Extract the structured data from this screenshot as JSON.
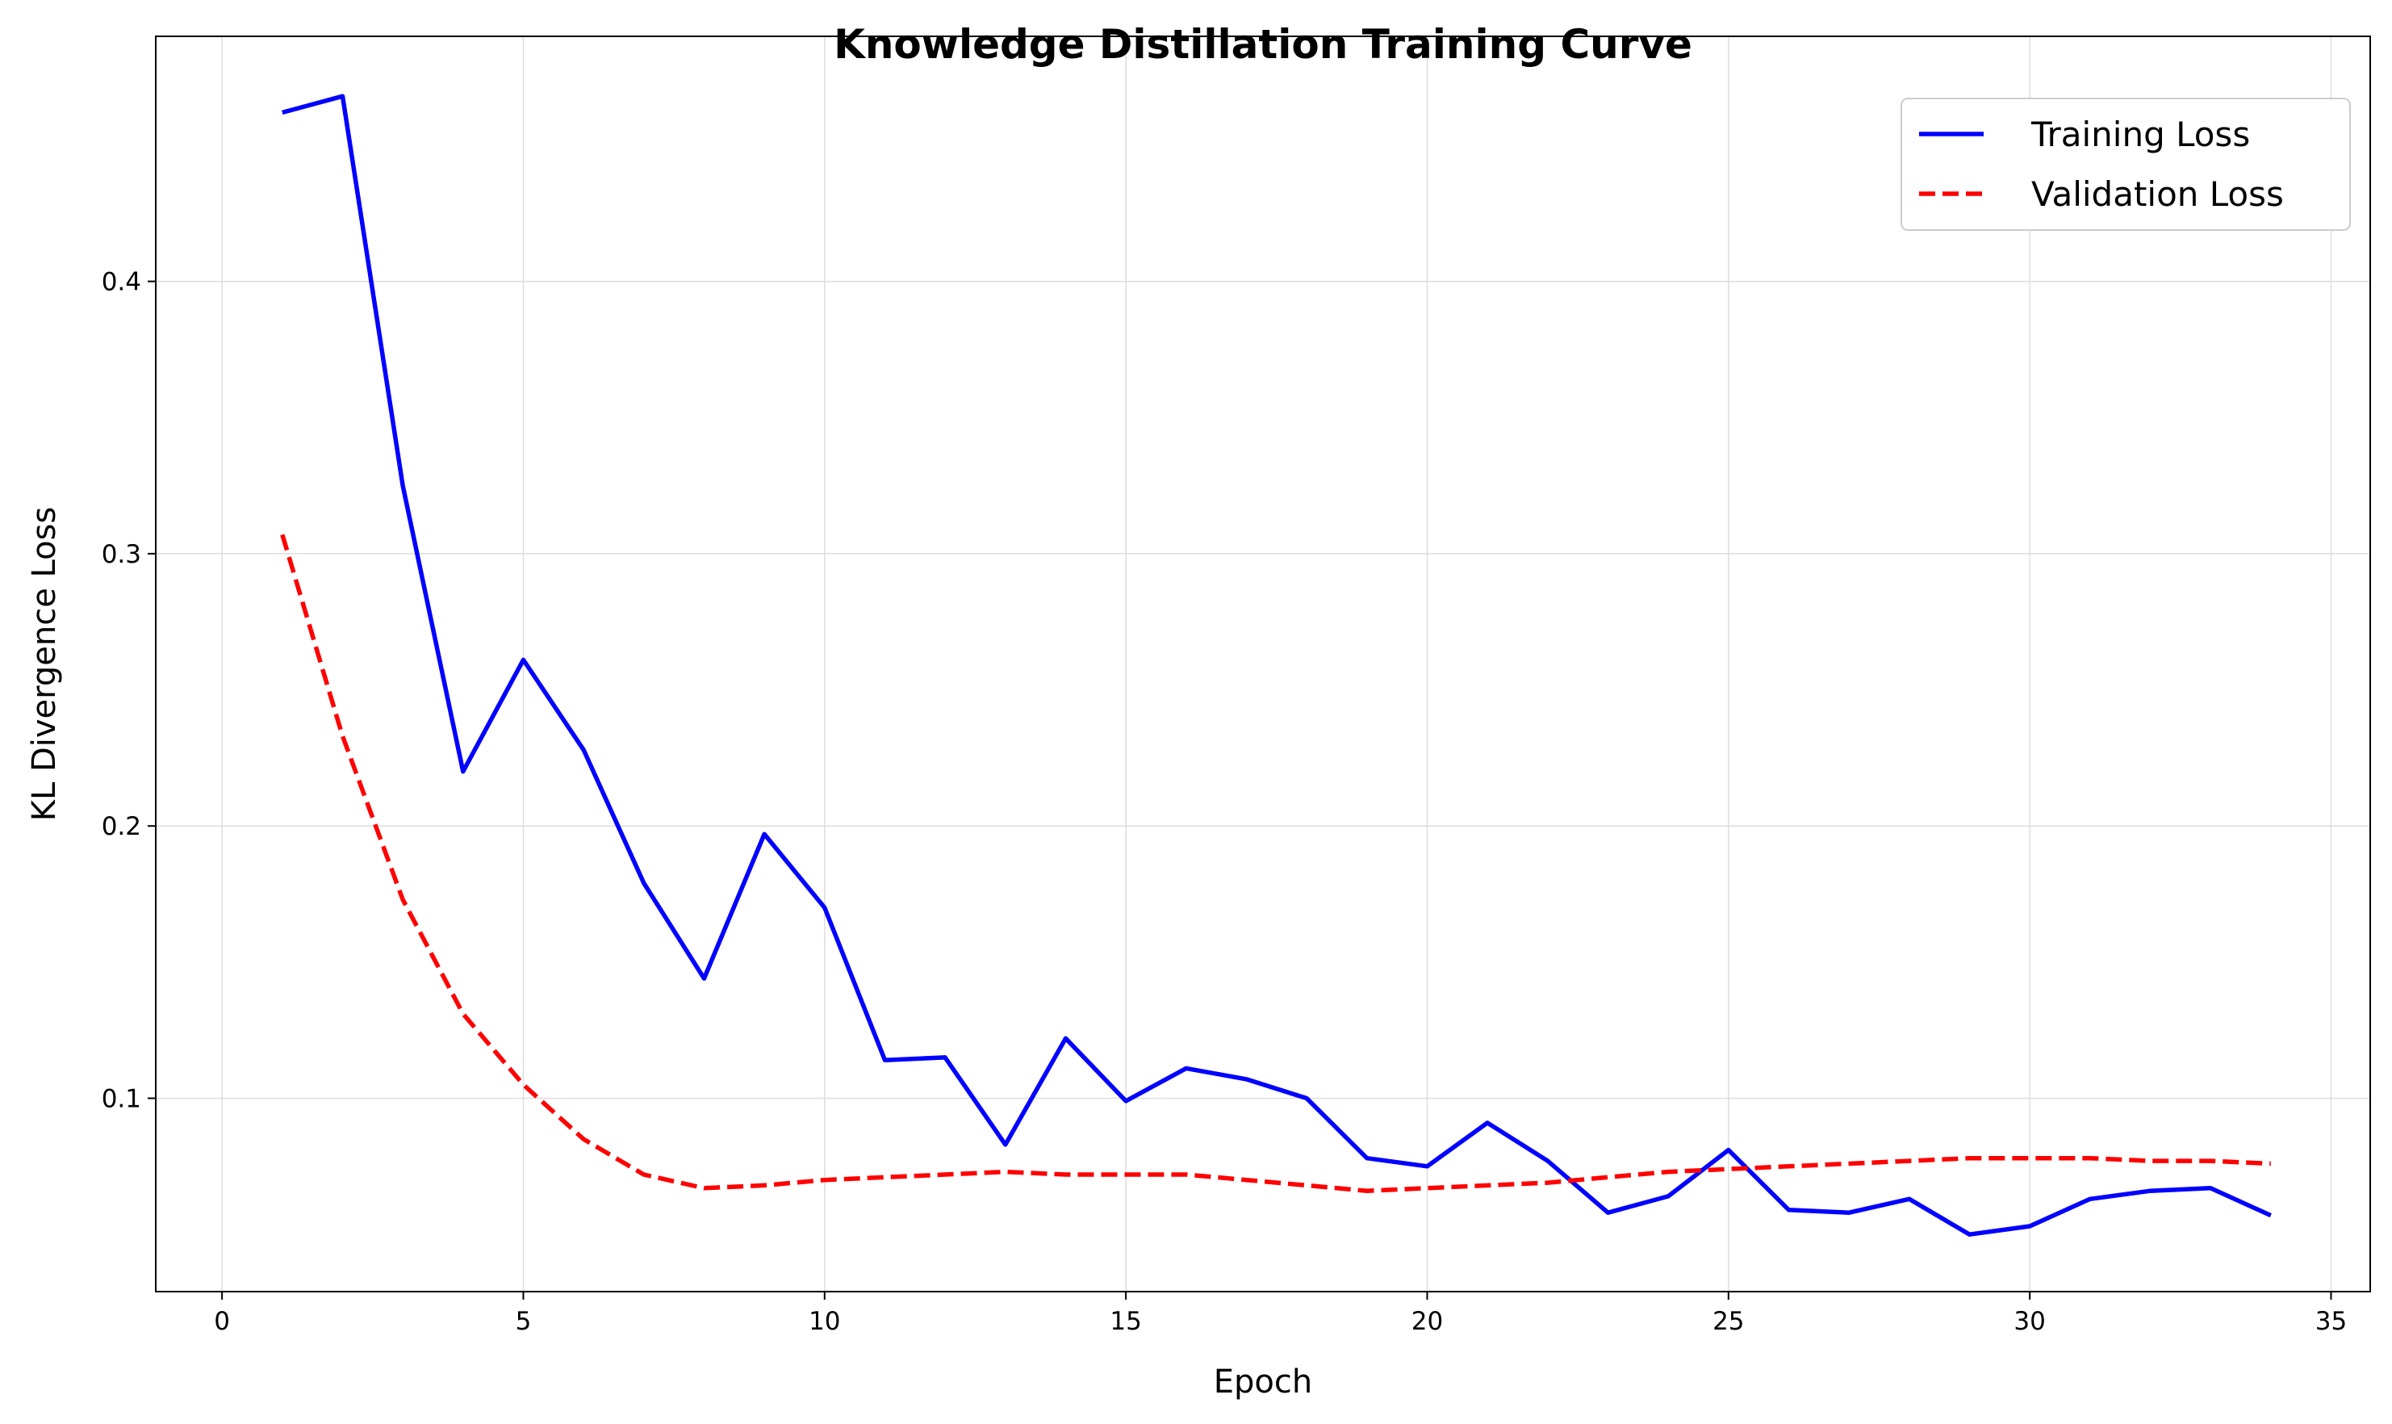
{
  "chart_data": {
    "type": "line",
    "title": "Knowledge Distillation Training Curve",
    "xlabel": "Epoch",
    "ylabel": "KL Divergence Loss",
    "xlim": [
      -1.1,
      35.65
    ],
    "ylim": [
      0.029,
      0.49
    ],
    "xticks": [
      0,
      5,
      10,
      15,
      20,
      25,
      30,
      35
    ],
    "xtick_labels": [
      "0",
      "5",
      "10",
      "15",
      "20",
      "25",
      "30",
      "35"
    ],
    "yticks": [
      0.1,
      0.2,
      0.3,
      0.4
    ],
    "ytick_labels": [
      "0.1",
      "0.2",
      "0.3",
      "0.4"
    ],
    "grid": true,
    "legend_position": "top-right",
    "x": [
      1,
      2,
      3,
      4,
      5,
      6,
      7,
      8,
      9,
      10,
      11,
      12,
      13,
      14,
      15,
      16,
      17,
      18,
      19,
      20,
      21,
      22,
      23,
      24,
      25,
      26,
      27,
      28,
      29,
      30,
      31,
      32,
      33,
      34
    ],
    "series": [
      {
        "name": "Training Loss",
        "color": "#0000ff",
        "style": "solid",
        "values": [
          0.462,
          0.468,
          0.325,
          0.22,
          0.261,
          0.228,
          0.179,
          0.144,
          0.197,
          0.17,
          0.114,
          0.115,
          0.083,
          0.122,
          0.099,
          0.111,
          0.107,
          0.1,
          0.078,
          0.075,
          0.091,
          0.077,
          0.058,
          0.064,
          0.081,
          0.059,
          0.058,
          0.063,
          0.05,
          0.053,
          0.063,
          0.066,
          0.067,
          0.057
        ]
      },
      {
        "name": "Validation Loss",
        "color": "#ff0000",
        "style": "dashed",
        "values": [
          0.307,
          0.233,
          0.173,
          0.131,
          0.105,
          0.085,
          0.072,
          0.067,
          0.068,
          0.07,
          0.071,
          0.072,
          0.073,
          0.072,
          0.072,
          0.072,
          0.07,
          0.068,
          0.066,
          0.067,
          0.068,
          0.069,
          0.071,
          0.073,
          0.074,
          0.075,
          0.076,
          0.077,
          0.078,
          0.078,
          0.078,
          0.077,
          0.077,
          0.076
        ]
      }
    ]
  }
}
